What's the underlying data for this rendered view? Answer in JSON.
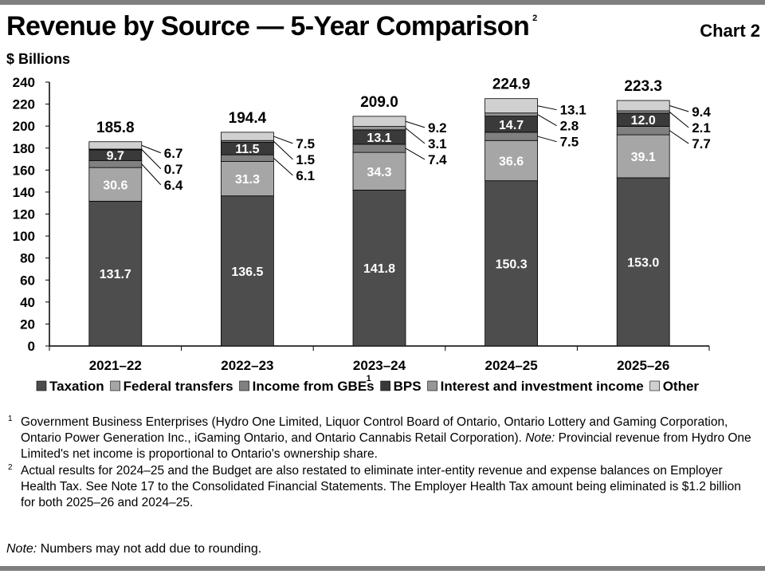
{
  "header": {
    "title": "Revenue by Source — 5-Year Comparison",
    "title_superscript": "2",
    "chart_number": "Chart 2"
  },
  "chart_data": {
    "type": "bar",
    "stacked": true,
    "title": "Revenue by Source — 5-Year Comparison",
    "ylabel": "$ Billions",
    "xlabel": "",
    "ylim": [
      0,
      240
    ],
    "yticks": [
      0,
      20,
      40,
      60,
      80,
      100,
      120,
      140,
      160,
      180,
      200,
      220,
      240
    ],
    "grid": false,
    "legend_position": "bottom",
    "categories": [
      "2021–22",
      "2022–23",
      "2023–24",
      "2024–25",
      "2025–26"
    ],
    "series": [
      {
        "name": "Taxation",
        "color": "#4d4d4d",
        "values": [
          131.7,
          136.5,
          141.8,
          150.3,
          153.0
        ]
      },
      {
        "name": "Federal transfers",
        "color": "#a6a6a6",
        "values": [
          30.6,
          31.3,
          34.3,
          36.6,
          39.1
        ]
      },
      {
        "name": "Income from GBEs",
        "legend_superscript": "1",
        "color": "#808080",
        "values": [
          6.4,
          6.1,
          7.4,
          7.5,
          7.7
        ]
      },
      {
        "name": "BPS",
        "color": "#3a3a3a",
        "values": [
          9.7,
          11.5,
          13.1,
          14.7,
          12.0
        ]
      },
      {
        "name": "Interest and investment income",
        "color": "#969696",
        "values": [
          0.7,
          1.5,
          3.1,
          2.8,
          2.1
        ]
      },
      {
        "name": "Other",
        "color": "#d0d0d0",
        "values": [
          6.7,
          7.5,
          9.2,
          13.1,
          9.4
        ]
      }
    ],
    "totals": [
      185.8,
      194.4,
      209.0,
      224.9,
      223.3
    ]
  },
  "footnotes": [
    {
      "marker": "1",
      "text_before_note": "Government Business Enterprises (Hydro One Limited, Liquor Control Board of Ontario, Ontario Lottery and Gaming Corporation, Ontario Power Generation Inc., iGaming Ontario, and Ontario Cannabis Retail Corporation). ",
      "note_label": "Note:",
      "text_after_note": " Provincial revenue from Hydro One Limited's net income is proportional to Ontario's ownership share."
    },
    {
      "marker": "2",
      "text": "Actual results for 2024–25 and the Budget are also restated to eliminate inter-entity revenue and expense balances on Employer Health Tax. See Note 17 to the Consolidated Financial Statements. The Employer Health Tax amount being eliminated is $1.2 billion for both 2025–26 and 2024–25."
    }
  ],
  "note": {
    "label": "Note:",
    "text": " Numbers may not add due to rounding."
  }
}
